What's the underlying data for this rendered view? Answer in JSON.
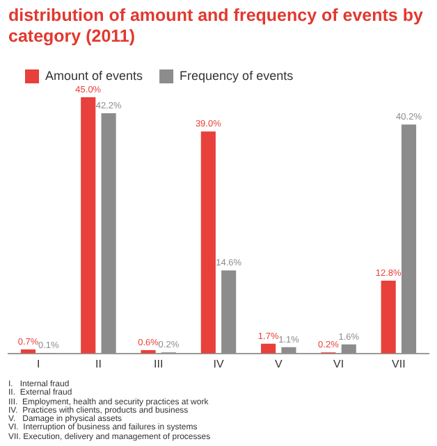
{
  "chart_data": {
    "type": "bar",
    "title": "distribution of amount and frequency of events by category (2011)",
    "categories": [
      "I",
      "II",
      "III",
      "IV",
      "V",
      "VI",
      "VII"
    ],
    "series": [
      {
        "name": "Amount of events",
        "color": "#e8403a",
        "values": [
          0.7,
          45.0,
          0.6,
          39.0,
          1.7,
          0.2,
          12.8
        ],
        "value_labels": [
          "0.7%",
          "45.0%",
          "0.6%",
          "39.0%",
          "1.7%",
          "0.2%",
          "12.8%"
        ]
      },
      {
        "name": "Frequency of events",
        "color": "#8c8c8c",
        "values": [
          0.1,
          42.2,
          0.2,
          14.6,
          1.1,
          1.6,
          40.2
        ],
        "value_labels": [
          "0.1%",
          "42.2%",
          "0.2%",
          "14.6%",
          "1.1%",
          "1.6%",
          "40.2%"
        ]
      }
    ],
    "legend": "top left",
    "grid": false,
    "annotations": [
      "I.   Internal fraud",
      "II.  External fraud",
      "III.  Employment, health and security practices at work",
      "IV.  Practices with clients, products and business",
      "V.   Damage in physical assets",
      "VI.  Interruption of business and failures in systems",
      "VII. Execution, delivery and management of processes"
    ]
  }
}
